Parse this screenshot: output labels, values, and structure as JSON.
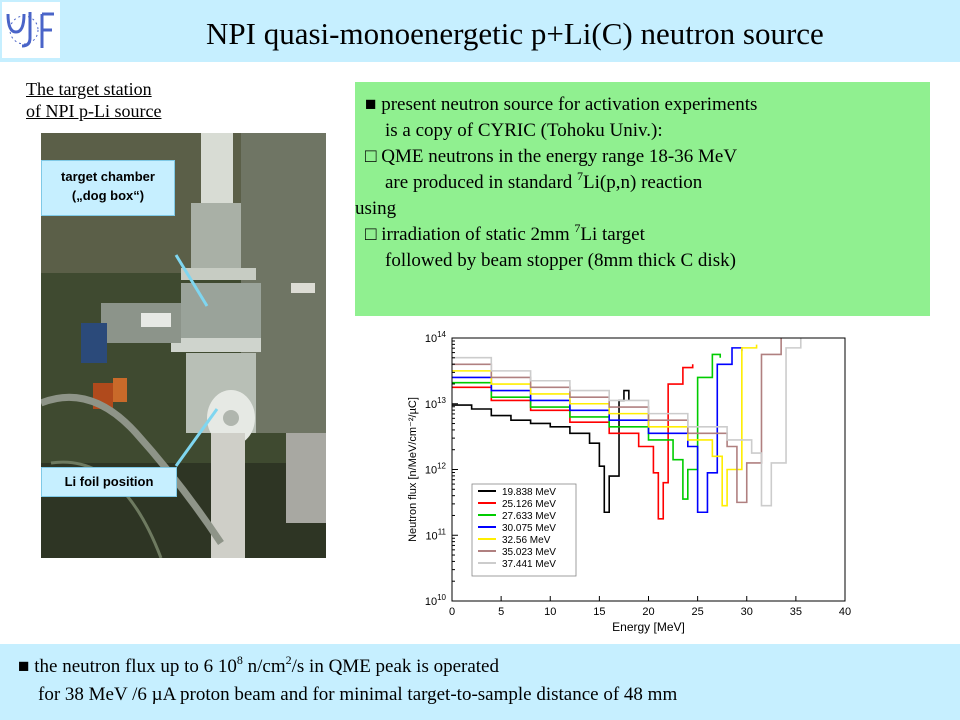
{
  "header": {
    "title": "NPI quasi-monoenergetic p+Li(C) neutron source",
    "logo_text": "UJF"
  },
  "photo_panel": {
    "caption_line1": "The target station ",
    "caption_line2": "of NPI p-Li source",
    "callout_chamber_line1": "target chamber",
    "callout_chamber_line2": "(„dog box“)",
    "callout_foil": "Li foil position"
  },
  "info_box": {
    "line1": "■ present neutron source for activation experiments",
    "line2": "is a copy of CYRIC (Tohoku Univ.):",
    "line3": "□  QME neutrons in the energy range 18-36 MeV",
    "line4a": "are produced in standard ",
    "line4sup": "7",
    "line4b": "Li(p,n) reaction",
    "line5": "using",
    "line6a": "□  irradiation of static 2mm ",
    "line6sup": "7",
    "line6b": "Li target",
    "line7": "followed by beam stopper (8mm thick C disk)"
  },
  "bottom": {
    "line1a": "■  the neutron flux up to 6 10",
    "line1sup1": "8",
    "line1b": " n/cm",
    "line1sup2": "2",
    "line1c": "/s in QME peak is operated",
    "line2": "for 38 MeV /6 µA proton beam and for minimal  target-to-sample distance of 48 mm"
  },
  "chart_data": {
    "type": "line",
    "xlabel": "Energy [MeV]",
    "ylabel": "Neutron flux [n/MeV/cm⁻²/µC]",
    "xlim": [
      0,
      40
    ],
    "ylim_log10": [
      10,
      14
    ],
    "x_ticks": [
      "0",
      "5",
      "10",
      "15",
      "20",
      "25",
      "30",
      "35",
      "40"
    ],
    "y_ticks": [
      "10^10",
      "10^11",
      "10^12",
      "10^13",
      "10^14"
    ],
    "legend_position": "bottom-left",
    "series": [
      {
        "name": "19.838 MeV",
        "color": "#000000",
        "x": [
          0,
          2,
          4,
          6,
          8,
          10,
          12,
          14,
          15,
          15.5,
          16,
          17,
          17.5,
          18
        ],
        "y": [
          12.98,
          12.92,
          12.82,
          12.75,
          12.7,
          12.65,
          12.55,
          12.4,
          12.05,
          11.35,
          11.9,
          13.05,
          13.2,
          13.05
        ]
      },
      {
        "name": "25.126 MeV",
        "color": "#ff0000",
        "x": [
          0,
          4,
          8,
          12,
          16,
          19,
          20.5,
          21,
          21.5,
          22,
          23.5,
          24.5
        ],
        "y": [
          13.25,
          13.05,
          12.9,
          12.72,
          12.55,
          12.35,
          11.95,
          11.25,
          11.8,
          13.3,
          13.55,
          13.6
        ]
      },
      {
        "name": "27.633 MeV",
        "color": "#00cc00",
        "x": [
          0,
          4,
          8,
          12,
          16,
          20,
          22.5,
          23.5,
          24,
          25,
          26.5,
          27.3
        ],
        "y": [
          13.32,
          13.1,
          12.95,
          12.8,
          12.65,
          12.45,
          12.15,
          11.55,
          12.0,
          13.4,
          13.75,
          13.7
        ]
      },
      {
        "name": "30.075 MeV",
        "color": "#0000ff",
        "x": [
          0,
          4,
          8,
          12,
          16,
          20,
          24,
          25,
          26,
          27,
          28.5,
          29.5
        ],
        "y": [
          13.4,
          13.2,
          13.05,
          12.9,
          12.75,
          12.55,
          12.35,
          11.35,
          11.95,
          13.6,
          13.85,
          13.8
        ]
      },
      {
        "name": "32.56 MeV",
        "color": "#ffee00",
        "x": [
          0,
          4,
          8,
          12,
          16,
          20,
          24,
          26.5,
          27.5,
          28,
          29.5,
          31
        ],
        "y": [
          13.5,
          13.3,
          13.15,
          13.0,
          12.85,
          12.65,
          12.45,
          12.2,
          11.45,
          12.0,
          13.85,
          13.9
        ]
      },
      {
        "name": "35.023 MeV",
        "color": "#b08080",
        "x": [
          0,
          4,
          8,
          12,
          16,
          20,
          24,
          28,
          29,
          30,
          31.5,
          33.5
        ],
        "y": [
          13.6,
          13.4,
          13.25,
          13.1,
          12.95,
          12.75,
          12.55,
          12.35,
          11.5,
          12.1,
          13.75,
          14.0
        ]
      },
      {
        "name": "37.441 MeV",
        "color": "#cccccc",
        "x": [
          0,
          4,
          8,
          12,
          16,
          20,
          24,
          28,
          30.5,
          31.5,
          32.5,
          34,
          35.5
        ],
        "y": [
          13.7,
          13.5,
          13.35,
          13.2,
          13.05,
          12.85,
          12.65,
          12.45,
          12.25,
          11.45,
          12.1,
          13.85,
          14.0
        ]
      }
    ]
  }
}
